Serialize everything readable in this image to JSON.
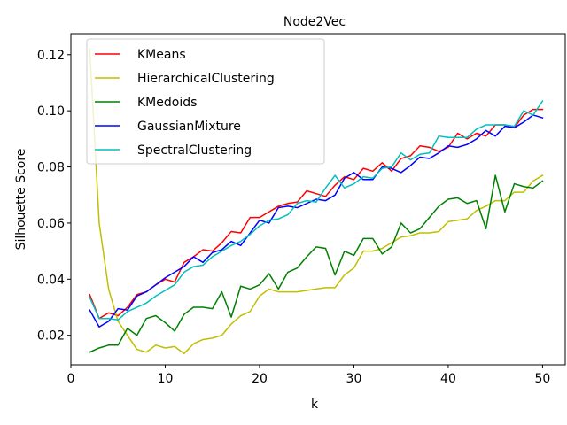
{
  "chart_data": {
    "type": "line",
    "title": "Node2Vec",
    "xlabel": "k",
    "ylabel": "Silhouette Score",
    "xlim": [
      0,
      52.4
    ],
    "ylim": [
      0.0095,
      0.1275
    ],
    "xticks": [
      0,
      10,
      20,
      30,
      40,
      50
    ],
    "xtick_labels": [
      "0",
      "10",
      "20",
      "30",
      "40",
      "50"
    ],
    "yticks": [
      0.02,
      0.04,
      0.06,
      0.08,
      0.1,
      0.12
    ],
    "ytick_labels": [
      "0.02",
      "0.04",
      "0.06",
      "0.08",
      "0.10",
      "0.12"
    ],
    "grid": false,
    "legend_position": "upper-left",
    "x": [
      2,
      3,
      4,
      5,
      6,
      7,
      8,
      9,
      10,
      11,
      12,
      13,
      14,
      15,
      16,
      17,
      18,
      19,
      20,
      21,
      22,
      23,
      24,
      25,
      26,
      27,
      28,
      29,
      30,
      31,
      32,
      33,
      34,
      35,
      36,
      37,
      38,
      39,
      40,
      41,
      42,
      43,
      44,
      45,
      46,
      47,
      48,
      49,
      50
    ],
    "series": [
      {
        "name": "KMeans",
        "color": "#ff0000",
        "values": [
          0.0345,
          0.026,
          0.028,
          0.027,
          0.03,
          0.0345,
          0.0355,
          0.038,
          0.04,
          0.039,
          0.046,
          0.048,
          0.0505,
          0.05,
          0.053,
          0.057,
          0.0565,
          0.062,
          0.062,
          0.064,
          0.066,
          0.067,
          0.0675,
          0.0715,
          0.0705,
          0.0695,
          0.0735,
          0.0765,
          0.0755,
          0.0795,
          0.0785,
          0.0815,
          0.0785,
          0.083,
          0.084,
          0.0875,
          0.087,
          0.0855,
          0.087,
          0.092,
          0.09,
          0.092,
          0.091,
          0.095,
          0.095,
          0.094,
          0.0985,
          0.1005,
          0.1005
        ]
      },
      {
        "name": "HierarchicalClustering",
        "color": "#bfbf00",
        "values": [
          0.122,
          0.06,
          0.0365,
          0.025,
          0.02,
          0.015,
          0.014,
          0.0165,
          0.0155,
          0.016,
          0.0135,
          0.017,
          0.0185,
          0.019,
          0.02,
          0.024,
          0.027,
          0.0285,
          0.034,
          0.0365,
          0.0355,
          0.0355,
          0.0355,
          0.036,
          0.0365,
          0.037,
          0.037,
          0.0415,
          0.044,
          0.05,
          0.05,
          0.051,
          0.053,
          0.055,
          0.0555,
          0.0565,
          0.0565,
          0.057,
          0.0605,
          0.061,
          0.0615,
          0.0645,
          0.066,
          0.068,
          0.068,
          0.071,
          0.071,
          0.075,
          0.077
        ]
      },
      {
        "name": "KMedoids",
        "color": "#008000",
        "values": [
          0.014,
          0.0155,
          0.0165,
          0.0165,
          0.0225,
          0.02,
          0.026,
          0.027,
          0.0245,
          0.0215,
          0.0275,
          0.03,
          0.03,
          0.0295,
          0.0355,
          0.0265,
          0.0375,
          0.0365,
          0.038,
          0.042,
          0.0365,
          0.0425,
          0.044,
          0.048,
          0.0515,
          0.051,
          0.0415,
          0.05,
          0.0485,
          0.0545,
          0.0545,
          0.049,
          0.0515,
          0.06,
          0.0565,
          0.058,
          0.062,
          0.066,
          0.0685,
          0.069,
          0.067,
          0.068,
          0.058,
          0.077,
          0.064,
          0.074,
          0.073,
          0.0725,
          0.075
        ]
      },
      {
        "name": "GaussianMixture",
        "color": "#0000ff",
        "values": [
          0.029,
          0.023,
          0.025,
          0.0295,
          0.029,
          0.034,
          0.0355,
          0.038,
          0.0405,
          0.0425,
          0.0445,
          0.048,
          0.046,
          0.0495,
          0.0505,
          0.0535,
          0.052,
          0.0565,
          0.061,
          0.06,
          0.0655,
          0.066,
          0.0655,
          0.067,
          0.0685,
          0.068,
          0.07,
          0.076,
          0.078,
          0.0755,
          0.0755,
          0.08,
          0.0795,
          0.078,
          0.0805,
          0.0835,
          0.083,
          0.085,
          0.0875,
          0.087,
          0.088,
          0.09,
          0.093,
          0.091,
          0.0945,
          0.094,
          0.096,
          0.0985,
          0.0975
        ]
      },
      {
        "name": "SpectralClustering",
        "color": "#00bfbf",
        "values": [
          0.0335,
          0.026,
          0.026,
          0.0255,
          0.0285,
          0.03,
          0.0315,
          0.034,
          0.036,
          0.038,
          0.0425,
          0.0445,
          0.045,
          0.048,
          0.05,
          0.052,
          0.0535,
          0.056,
          0.059,
          0.061,
          0.0615,
          0.063,
          0.067,
          0.068,
          0.0675,
          0.0725,
          0.077,
          0.0725,
          0.074,
          0.0765,
          0.076,
          0.0795,
          0.08,
          0.085,
          0.0825,
          0.0845,
          0.085,
          0.091,
          0.0905,
          0.0905,
          0.0905,
          0.0935,
          0.095,
          0.095,
          0.095,
          0.0945,
          0.1,
          0.0985,
          0.1035
        ]
      }
    ]
  }
}
